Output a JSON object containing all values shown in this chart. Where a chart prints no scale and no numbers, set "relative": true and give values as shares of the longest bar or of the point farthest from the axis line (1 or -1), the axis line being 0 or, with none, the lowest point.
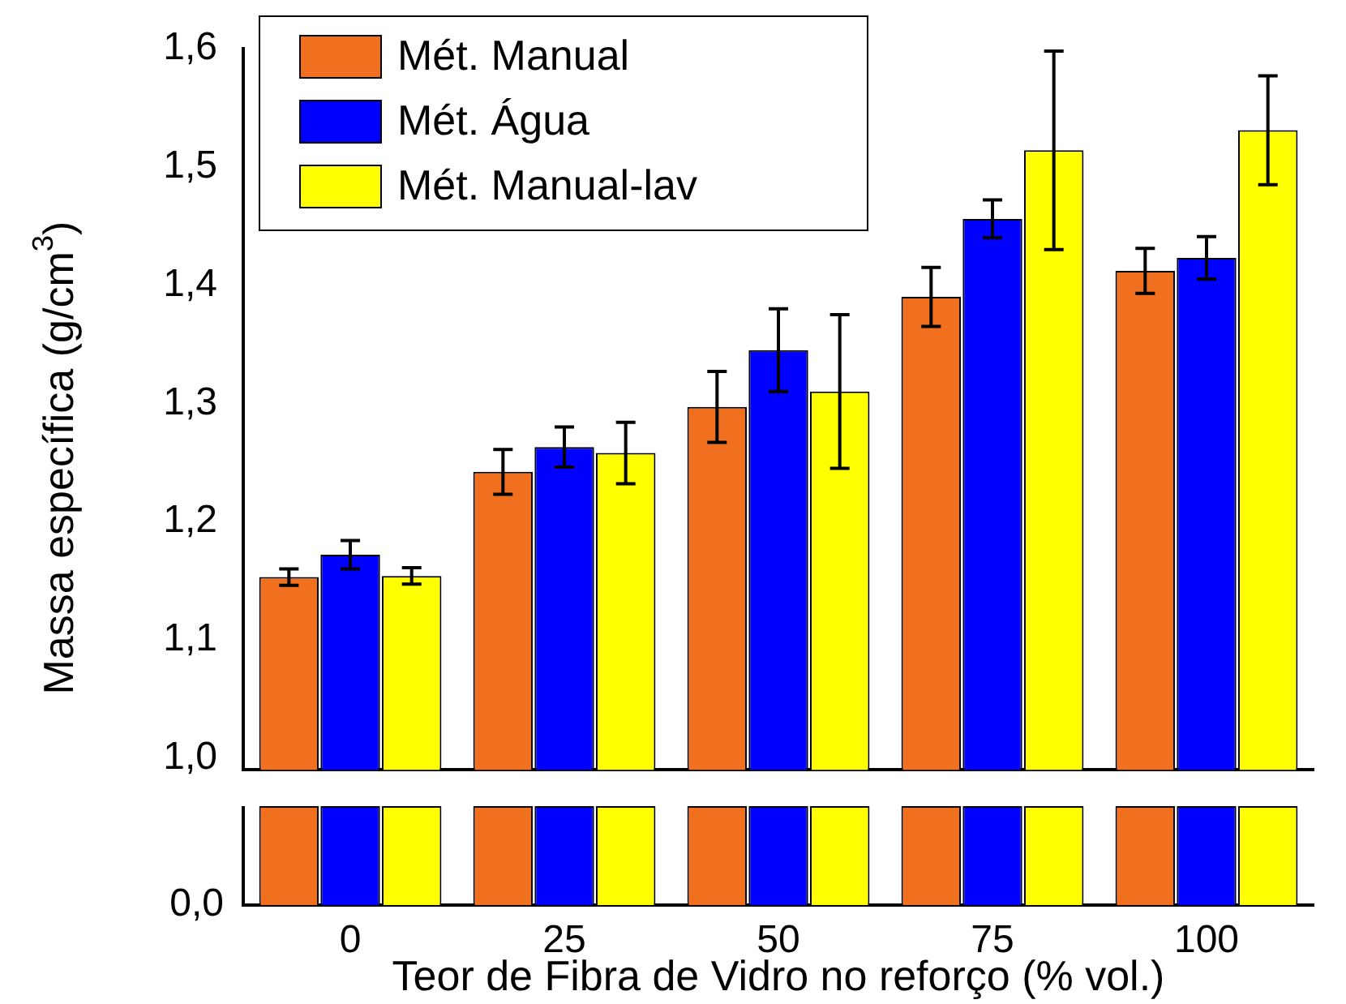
{
  "chart_data": [
    {
      "type": "bar",
      "ylabel": "Massa específica (g/cm$^{3}$)",
      "categories": [
        "0",
        "25",
        "50",
        "75",
        "100"
      ],
      "legend": "top left",
      "tick_labels": "y",
      "grid": false,
      "ylim": [
        0.99,
        1.6
      ],
      "yticks": [
        {
          "value": 1.0,
          "label": "1,0"
        },
        {
          "value": 1.1,
          "label": "1,1"
        },
        {
          "value": 1.2,
          "label": "1,2"
        },
        {
          "value": 1.3,
          "label": "1,3"
        },
        {
          "value": 1.4,
          "label": "1,4"
        },
        {
          "value": 1.5,
          "label": "1,5"
        },
        {
          "value": 1.6,
          "label": "1,6"
        }
      ],
      "series": [
        {
          "name": "Mét. Manual",
          "color": "#f07020",
          "values": [
            1.153,
            1.242,
            1.297,
            1.39,
            1.412
          ],
          "errors": [
            0.007,
            0.019,
            0.03,
            0.025,
            0.019
          ]
        },
        {
          "name": "Mét. Água",
          "color": "#0000ff",
          "values": [
            1.172,
            1.263,
            1.345,
            1.456,
            1.423
          ],
          "errors": [
            0.012,
            0.017,
            0.035,
            0.016,
            0.018
          ]
        },
        {
          "name": "Mét. Manual-lav",
          "color": "#ffff00",
          "values": [
            1.154,
            1.258,
            1.31,
            1.514,
            1.531
          ],
          "errors": [
            0.007,
            0.026,
            0.065,
            0.084,
            0.046
          ]
        }
      ]
    },
    {
      "type": "bar",
      "xlabel": "Teor de Fibra de Vidro no reforço (% vol.)",
      "categories": [
        "0",
        "25",
        "50",
        "75",
        "100"
      ],
      "relative": true,
      "tick_labels": "x",
      "annotations": [
        "0,0"
      ],
      "series": [
        {
          "color": "#f07020",
          "values": [
            1,
            1,
            1,
            1,
            1
          ]
        },
        {
          "color": "#0000ff",
          "values": [
            1,
            1,
            1,
            1,
            1
          ]
        },
        {
          "color": "#ffff00",
          "values": [
            1,
            1,
            1,
            1,
            1
          ]
        }
      ]
    }
  ]
}
